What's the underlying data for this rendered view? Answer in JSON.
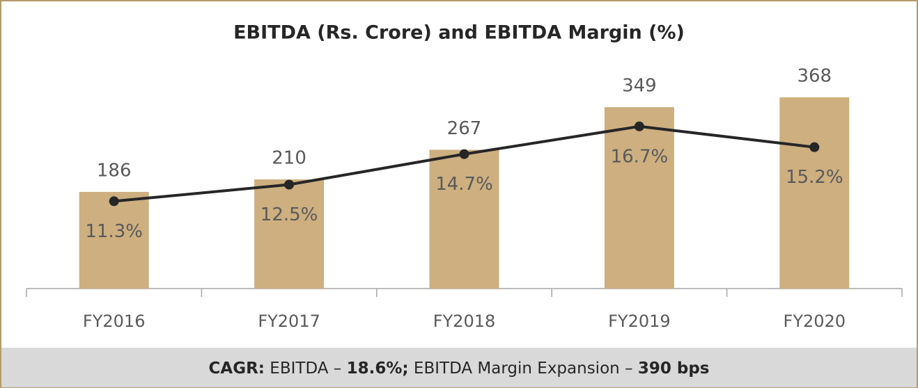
{
  "chart_data": {
    "type": "bar",
    "title": "EBITDA (Rs. Crore) and EBITDA Margin (%)",
    "categories": [
      "FY2016",
      "FY2017",
      "FY2018",
      "FY2019",
      "FY2020"
    ],
    "ylim": [
      0,
      400
    ],
    "y2lim": [
      5,
      20
    ],
    "series": [
      {
        "type": "bar",
        "color": "#cdaf80",
        "values": [
          186,
          210,
          267,
          349,
          368
        ]
      },
      {
        "type": "line",
        "axis": "y2",
        "color": "#262626",
        "values": [
          11.3,
          12.5,
          14.7,
          16.7,
          15.2
        ],
        "value_labels": [
          "11.3%",
          "12.5%",
          "14.7%",
          "16.7%",
          "15.2%"
        ]
      }
    ],
    "footer": [
      "CAGR:",
      " EBITDA – ",
      "18.6%;",
      " EBITDA Margin Expansion – ",
      "390 bps"
    ]
  }
}
